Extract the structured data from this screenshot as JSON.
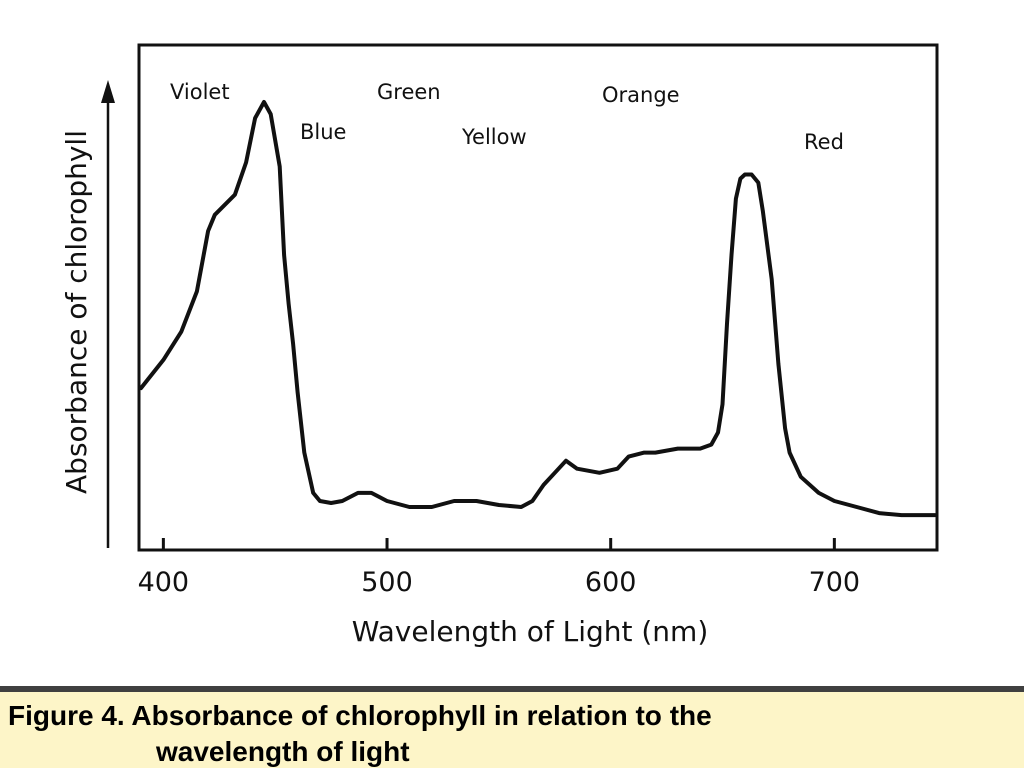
{
  "chart_data": {
    "type": "line",
    "xlabel": "Wavelength of Light (nm)",
    "ylabel": "Absorbance of chlorophyll",
    "xlim": [
      390,
      745
    ],
    "ylim": [
      0,
      100
    ],
    "x_ticks": [
      400,
      500,
      600,
      700
    ],
    "grid": false,
    "legend": "none",
    "band_labels": [
      "Violet",
      "Blue",
      "Green",
      "Yellow",
      "Orange",
      "Red"
    ],
    "series": [
      {
        "x": [
          390,
          400,
          408,
          415,
          420,
          423,
          432,
          437,
          441,
          445,
          448,
          452,
          454,
          456,
          458,
          460,
          463,
          467,
          470,
          475,
          480,
          487,
          493,
          500,
          510,
          520,
          530,
          540,
          550,
          560,
          565,
          570,
          575,
          580,
          585,
          595,
          603,
          608,
          615,
          620,
          630,
          640,
          645,
          648,
          650,
          652,
          654,
          656,
          658,
          660,
          663,
          666,
          668,
          672,
          675,
          678,
          680,
          685,
          693,
          700,
          710,
          720,
          730,
          740,
          745
        ],
        "y": [
          29,
          36,
          43,
          53,
          68,
          72,
          77,
          85,
          96,
          100,
          97,
          84,
          62,
          50,
          40,
          28,
          13,
          3,
          1,
          0.5,
          1,
          3,
          3,
          1,
          -0.5,
          -0.5,
          1,
          1,
          0,
          -0.5,
          1,
          5,
          8,
          11,
          9,
          8,
          9,
          12,
          13,
          13,
          14,
          14,
          15,
          18,
          25,
          45,
          62,
          76,
          81,
          82,
          82,
          80,
          73,
          56,
          35,
          19,
          13,
          7,
          3,
          1,
          -0.5,
          -2,
          -2.5,
          -2.5,
          -2.5
        ]
      }
    ]
  },
  "caption": {
    "line1": "Figure 4. Absorbance of chlorophyll in relation to the",
    "line2": "wavelength of light"
  },
  "colors": {
    "curve": "#111111",
    "caption_bg": "#fdf5c8",
    "caption_rule": "#404040"
  }
}
